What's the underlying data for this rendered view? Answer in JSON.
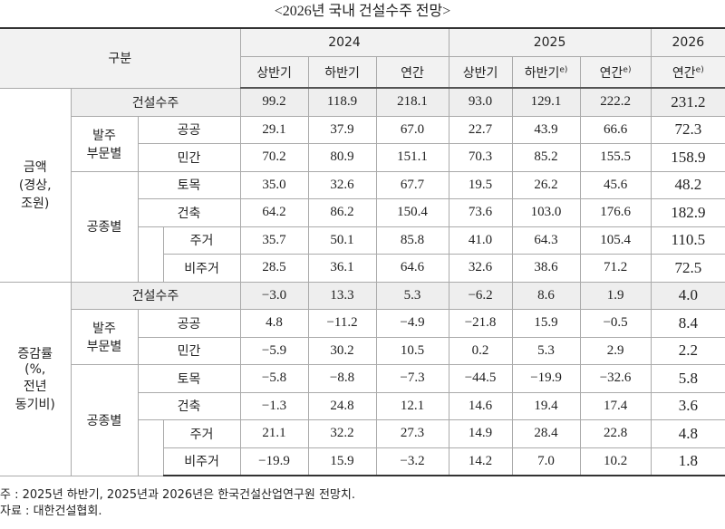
{
  "title": "<2026년 국내 건설수주 전망>",
  "header": {
    "corner": "구분",
    "years": [
      "2024",
      "2025",
      "2026"
    ],
    "subheaders": [
      {
        "text": "상반기"
      },
      {
        "text": "하반기"
      },
      {
        "text": "연간"
      },
      {
        "text": "상반기"
      },
      {
        "text": "하반기",
        "sup": "e)"
      },
      {
        "text": "연간",
        "sup": "e)"
      },
      {
        "text": "연간",
        "sup": "e)"
      }
    ]
  },
  "sections": [
    {
      "label": "금액\n(경상,\n조원)",
      "total": {
        "label": "건설수주",
        "values": [
          "99.2",
          "118.9",
          "218.1",
          "93.0",
          "129.1",
          "222.2",
          "231.2"
        ]
      },
      "groups": [
        {
          "label": "발주\n부문별",
          "rows": [
            {
              "label": "공공",
              "values": [
                "29.1",
                "37.9",
                "67.0",
                "22.7",
                "43.9",
                "66.6",
                "72.3"
              ]
            },
            {
              "label": "민간",
              "values": [
                "70.2",
                "80.9",
                "151.1",
                "70.3",
                "85.2",
                "155.5",
                "158.9"
              ]
            }
          ]
        },
        {
          "label": "공종별",
          "rows": [
            {
              "label": "토목",
              "values": [
                "35.0",
                "32.6",
                "67.7",
                "19.5",
                "26.2",
                "45.6",
                "48.2"
              ]
            },
            {
              "label": "건축",
              "values": [
                "64.2",
                "86.2",
                "150.4",
                "73.6",
                "103.0",
                "176.6",
                "182.9"
              ]
            },
            {
              "label": "주거",
              "indent": true,
              "values": [
                "35.7",
                "50.1",
                "85.8",
                "41.0",
                "64.3",
                "105.4",
                "110.5"
              ]
            },
            {
              "label": "비주거",
              "indent": true,
              "values": [
                "28.5",
                "36.1",
                "64.6",
                "32.6",
                "38.6",
                "71.2",
                "72.5"
              ]
            }
          ]
        }
      ]
    },
    {
      "label": "증감률\n(%,\n전년\n동기비)",
      "total": {
        "label": "건설수주",
        "values": [
          "−3.0",
          "13.3",
          "5.3",
          "−6.2",
          "8.6",
          "1.9",
          "4.0"
        ]
      },
      "groups": [
        {
          "label": "발주\n부문별",
          "rows": [
            {
              "label": "공공",
              "values": [
                "4.8",
                "−11.2",
                "−4.9",
                "−21.8",
                "15.9",
                "−0.5",
                "8.4"
              ]
            },
            {
              "label": "민간",
              "values": [
                "−5.9",
                "30.2",
                "10.5",
                "0.2",
                "5.3",
                "2.9",
                "2.2"
              ]
            }
          ]
        },
        {
          "label": "공종별",
          "rows": [
            {
              "label": "토목",
              "values": [
                "−5.8",
                "−8.8",
                "−7.3",
                "−44.5",
                "−19.9",
                "−32.6",
                "5.8"
              ]
            },
            {
              "label": "건축",
              "values": [
                "−1.3",
                "24.8",
                "12.1",
                "14.6",
                "19.4",
                "17.4",
                "3.6"
              ]
            },
            {
              "label": "주거",
              "indent": true,
              "values": [
                "21.1",
                "32.2",
                "27.3",
                "14.9",
                "28.4",
                "22.8",
                "4.8"
              ]
            },
            {
              "label": "비주거",
              "indent": true,
              "values": [
                "−19.9",
                "15.9",
                "−3.2",
                "14.2",
                "7.0",
                "10.2",
                "1.8"
              ]
            }
          ]
        }
      ]
    }
  ],
  "notes": [
    "주 : 2025년 하반기, 2025년과 2026년은 한국건설산업연구원 전망치.",
    "자료 : 대한건설협회."
  ]
}
